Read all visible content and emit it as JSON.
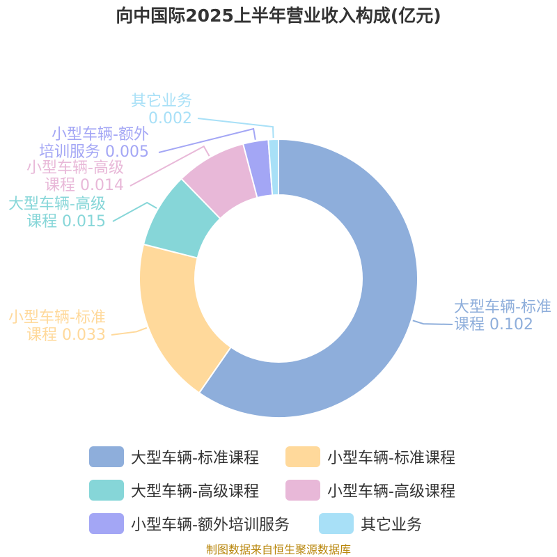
{
  "chart_data": {
    "type": "pie",
    "title": "向中国际2025上半年营业收入构成(亿元)",
    "slices": [
      {
        "name": "大型车辆-标准课程",
        "value": 0.102,
        "label_lines": [
          "大型车辆-标准",
          "课程 0.102"
        ],
        "color": "#8eaedb"
      },
      {
        "name": "小型车辆-标准课程",
        "value": 0.033,
        "label_lines": [
          "小型车辆-标准",
          "课程 0.033"
        ],
        "color": "#ffd99b"
      },
      {
        "name": "大型车辆-高级课程",
        "value": 0.015,
        "label_lines": [
          "大型车辆-高级",
          "课程 0.015"
        ],
        "color": "#86d6d8"
      },
      {
        "name": "小型车辆-高级课程",
        "value": 0.014,
        "label_lines": [
          "小型车辆-高级",
          "课程 0.014"
        ],
        "color": "#e8b8d8"
      },
      {
        "name": "小型车辆-额外培训服务",
        "value": 0.005,
        "label_lines": [
          "小型车辆-额外",
          "培训服务 0.005"
        ],
        "color": "#a3a6f5"
      },
      {
        "name": "其它业务",
        "value": 0.002,
        "label_lines": [
          "其它业务",
          "0.002"
        ],
        "color": "#a8e0f7"
      }
    ],
    "legend_position": "bottom",
    "donut": true
  },
  "footer": {
    "source": "制图数据来自恒生聚源数据库"
  }
}
